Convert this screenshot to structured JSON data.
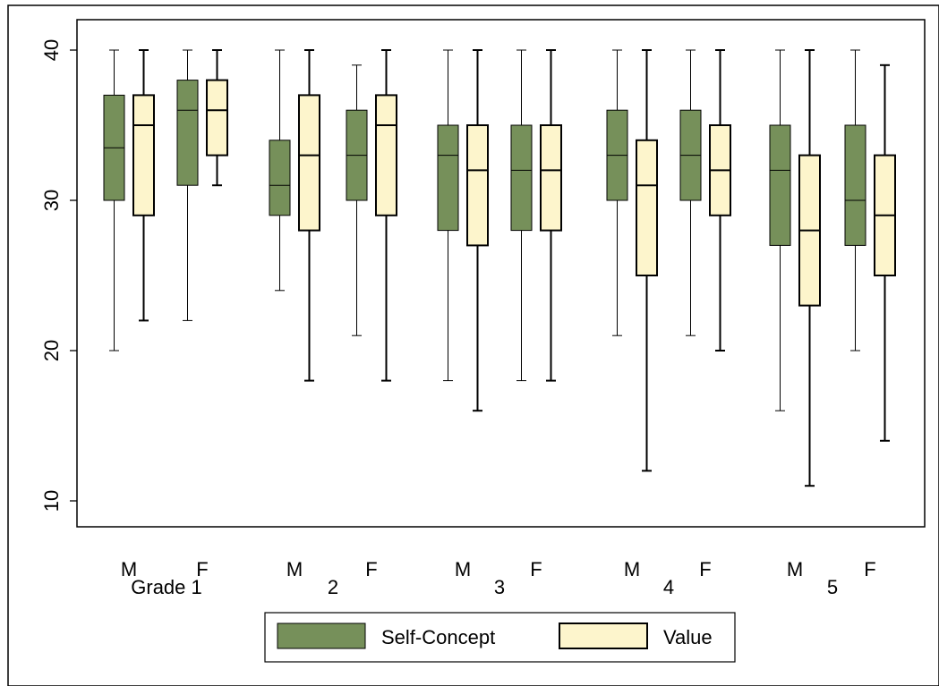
{
  "chart_data": {
    "type": "boxplot",
    "title": "",
    "xlabel": "",
    "ylabel": "",
    "ylim": [
      9,
      41
    ],
    "y_ticks": [
      10,
      20,
      30,
      40
    ],
    "y_tick_labels": [
      "10",
      "20",
      "30",
      "40"
    ],
    "grid": false,
    "legend_position": "bottom",
    "groups": [
      "Grade 1",
      "2",
      "3",
      "4",
      "5"
    ],
    "subcategories": [
      "M",
      "F"
    ],
    "series": [
      {
        "name": "Self-Concept",
        "color": "#76905a",
        "boxes": [
          {
            "group": "Grade 1",
            "sub": "M",
            "min": 20,
            "q1": 30,
            "median": 33.5,
            "q3": 37,
            "max": 40
          },
          {
            "group": "Grade 1",
            "sub": "F",
            "min": 22,
            "q1": 31,
            "median": 36,
            "q3": 38,
            "max": 40
          },
          {
            "group": "2",
            "sub": "M",
            "min": 24,
            "q1": 29,
            "median": 31,
            "q3": 34,
            "max": 40
          },
          {
            "group": "2",
            "sub": "F",
            "min": 21,
            "q1": 30,
            "median": 33,
            "q3": 36,
            "max": 39
          },
          {
            "group": "3",
            "sub": "M",
            "min": 18,
            "q1": 28,
            "median": 33,
            "q3": 35,
            "max": 40
          },
          {
            "group": "3",
            "sub": "F",
            "min": 18,
            "q1": 28,
            "median": 32,
            "q3": 35,
            "max": 40
          },
          {
            "group": "4",
            "sub": "M",
            "min": 21,
            "q1": 30,
            "median": 33,
            "q3": 36,
            "max": 40
          },
          {
            "group": "4",
            "sub": "F",
            "min": 21,
            "q1": 30,
            "median": 33,
            "q3": 36,
            "max": 40
          },
          {
            "group": "5",
            "sub": "M",
            "min": 16,
            "q1": 27,
            "median": 32,
            "q3": 35,
            "max": 40
          },
          {
            "group": "5",
            "sub": "F",
            "min": 20,
            "q1": 27,
            "median": 30,
            "q3": 35,
            "max": 40
          }
        ]
      },
      {
        "name": "Value",
        "color": "#fdf5cc",
        "boxes": [
          {
            "group": "Grade 1",
            "sub": "M",
            "min": 22,
            "q1": 29,
            "median": 35,
            "q3": 37,
            "max": 40
          },
          {
            "group": "Grade 1",
            "sub": "F",
            "min": 31,
            "q1": 33,
            "median": 36,
            "q3": 38,
            "max": 40
          },
          {
            "group": "2",
            "sub": "M",
            "min": 18,
            "q1": 28,
            "median": 33,
            "q3": 37,
            "max": 40
          },
          {
            "group": "2",
            "sub": "F",
            "min": 18,
            "q1": 29,
            "median": 35,
            "q3": 37,
            "max": 40
          },
          {
            "group": "3",
            "sub": "M",
            "min": 16,
            "q1": 27,
            "median": 32,
            "q3": 35,
            "max": 40
          },
          {
            "group": "3",
            "sub": "F",
            "min": 18,
            "q1": 28,
            "median": 32,
            "q3": 35,
            "max": 40
          },
          {
            "group": "4",
            "sub": "M",
            "min": 12,
            "q1": 25,
            "median": 31,
            "q3": 34,
            "max": 40
          },
          {
            "group": "4",
            "sub": "F",
            "min": 20,
            "q1": 29,
            "median": 32,
            "q3": 35,
            "max": 40
          },
          {
            "group": "5",
            "sub": "M",
            "min": 11,
            "q1": 23,
            "median": 28,
            "q3": 33,
            "max": 40
          },
          {
            "group": "5",
            "sub": "F",
            "min": 14,
            "q1": 25,
            "median": 29,
            "q3": 33,
            "max": 39
          }
        ]
      }
    ]
  }
}
